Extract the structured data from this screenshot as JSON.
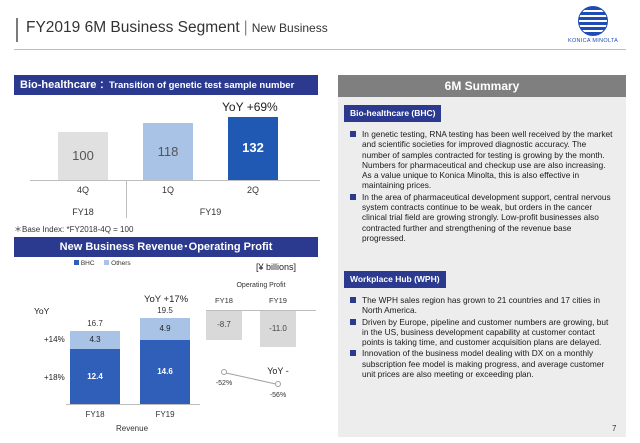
{
  "header": {
    "title": "FY2019 6M Business Segment",
    "subtitle": "New Business"
  },
  "logo": {
    "text": "KONICA MINOLTA"
  },
  "bhc_chart_section": {
    "title_main": "Bio-healthcare",
    "title_sub": "：Transition of genetic test sample number",
    "yoy": "YoY +69%",
    "note": "＊Base Index: *FY2018-4Q = 100"
  },
  "revenue_section": {
    "title": "New Business  Revenue･Operating Profit",
    "unit": "[¥ billions]",
    "legend": [
      "BHC",
      "Others"
    ],
    "yoy_row_label": "YoY",
    "yoy_label": "YoY +17%",
    "left_labels": [
      "+14%",
      "+18%"
    ],
    "x_title": "Revenue",
    "op_title": "Operating Profit",
    "op_yoy": "YoY -"
  },
  "chart_data": [
    {
      "type": "bar",
      "categories": [
        "4Q",
        "1Q",
        "2Q"
      ],
      "groups": [
        "FY18",
        "FY19",
        "FY19"
      ],
      "values": [
        100,
        118,
        132
      ],
      "colors": [
        "#e0e0e0",
        "#a9c3e6",
        "#1f59b3"
      ],
      "ylim": [
        0,
        140
      ]
    },
    {
      "type": "bar",
      "categories": [
        "FY18",
        "FY19"
      ],
      "series": [
        {
          "name": "BHC",
          "values": [
            12.4,
            14.6
          ],
          "color": "#2f5fb8"
        },
        {
          "name": "Others",
          "values": [
            4.3,
            4.9
          ],
          "color": "#a9c3e6"
        }
      ],
      "totals": [
        16.7,
        19.5
      ],
      "ylim": [
        0,
        20
      ]
    },
    {
      "type": "bar",
      "categories": [
        "FY18",
        "FY19"
      ],
      "series": [
        {
          "name": "Operating Profit",
          "values": [
            -8.7,
            -11.0
          ],
          "color": "#d9d9d9"
        },
        {
          "name": "BHC",
          "values": [
            -52,
            -56
          ],
          "color": "#a0a0a0"
        }
      ],
      "value_labels": [
        "-52%",
        "-56%"
      ]
    }
  ],
  "summary": {
    "title": "6M Summary",
    "bhc": {
      "tag": "Bio-healthcare (BHC)",
      "bullets": [
        "In genetic testing, RNA testing has been well received by the market and scientific societies for improved diagnostic accuracy. The number of samples contracted for testing is growing by the month. Numbers for pharmaceutical and checkup use are also increasing. As a value unique to Konica Minolta, this is also effective in maintaining prices.",
        "In the area of pharmaceutical development support, central nervous system contracts continue to be weak, but orders in the cancer clinical trial field are growing strongly. Low-profit businesses also contracted further and strengthening of the revenue base progressed."
      ]
    },
    "wph": {
      "tag": "Workplace Hub (WPH)",
      "bullets": [
        "The WPH sales region has grown to 21 countries and 17 cities in North America.",
        "Driven by Europe, pipeline and customer numbers are growing, but in the US, business development capability at customer contact points is taking time, and customer acquisition plans are delayed.",
        "Innovation of the business model dealing with DX on a monthly subscription fee model is making progress, and average customer unit prices are also meeting or exceeding plan."
      ]
    }
  },
  "page_number": "7"
}
